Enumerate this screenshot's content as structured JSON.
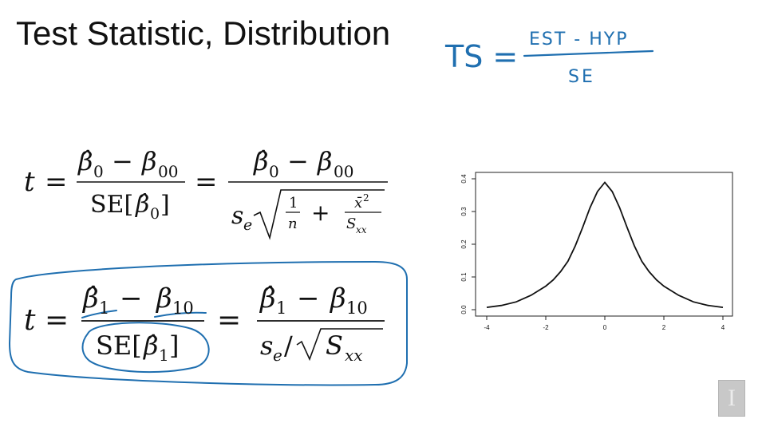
{
  "slide": {
    "title": "Test Statistic, Distribution",
    "handwritten_formula": {
      "lhs": "TS =",
      "numerator": "EST - HYP",
      "denominator": "SE"
    },
    "equation_intercept": {
      "var": "t",
      "eq1": "=",
      "eq2": "=",
      "frac1_num_hat": "β̂",
      "frac1_num_sub": "0",
      "frac1_num_op": "−",
      "frac1_num_beta": "β",
      "frac1_num_beta_sub": "00",
      "frac1_den": "SE[",
      "frac1_den_hat": "β̂",
      "frac1_den_sub": "0",
      "frac1_den_close": "]",
      "frac2_num_hat": "β̂",
      "frac2_num_sub": "0",
      "frac2_num_op": "−",
      "frac2_num_beta": "β",
      "frac2_num_beta_sub": "00",
      "frac2_den_s": "s",
      "frac2_den_s_sub": "e",
      "inner1_num": "1",
      "inner1_den": "n",
      "inner_plus": "+",
      "inner2_num": "x̄",
      "inner2_num_sup": "2",
      "inner2_den": "S",
      "inner2_den_sub": "xx"
    },
    "equation_slope": {
      "var": "t",
      "eq1": "=",
      "eq2": "=",
      "frac1_num_hat": "β̂",
      "frac1_num_sub": "1",
      "frac1_num_op": "−",
      "frac1_num_beta": "β",
      "frac1_num_beta_sub": "10",
      "frac1_den": "SE[",
      "frac1_den_hat": "β̂",
      "frac1_den_sub": "1",
      "frac1_den_close": "]",
      "frac2_num_hat": "β̂",
      "frac2_num_sub": "1",
      "frac2_num_op": "−",
      "frac2_num_beta": "β",
      "frac2_num_beta_sub": "10",
      "frac2_den_s": "s",
      "frac2_den_s_sub": "e",
      "frac2_den_slash": "/",
      "frac2_den_S": "S",
      "frac2_den_S_sub": "xx"
    },
    "colors": {
      "ink": "#1f6fb0",
      "text": "#111111"
    },
    "icons": {
      "logo": "university-logo-icon"
    }
  },
  "chart_data": {
    "type": "line",
    "title": "",
    "xlabel": "",
    "ylabel": "",
    "xlim": [
      -4,
      4
    ],
    "ylim": [
      0,
      0.4
    ],
    "x_ticks": [
      -4,
      -2,
      0,
      2,
      4
    ],
    "y_ticks": [
      0.0,
      0.1,
      0.2,
      0.3,
      0.4
    ],
    "x_tick_labels": [
      "-4",
      "-2",
      "0",
      "2",
      "4"
    ],
    "y_tick_labels": [
      "0.0",
      "0.1",
      "0.2",
      "0.3",
      "0.4"
    ],
    "grid": false,
    "series": [
      {
        "x": [
          -4.0,
          -3.5,
          -3.0,
          -2.5,
          -2.0,
          -1.75,
          -1.5,
          -1.25,
          -1.0,
          -0.75,
          -0.5,
          -0.25,
          0.0,
          0.25,
          0.5,
          0.75,
          1.0,
          1.25,
          1.5,
          1.75,
          2.0,
          2.5,
          3.0,
          3.5,
          4.0
        ],
        "y": [
          0.007,
          0.013,
          0.024,
          0.044,
          0.072,
          0.091,
          0.116,
          0.148,
          0.195,
          0.252,
          0.312,
          0.361,
          0.389,
          0.361,
          0.312,
          0.252,
          0.195,
          0.148,
          0.116,
          0.091,
          0.072,
          0.044,
          0.024,
          0.013,
          0.007
        ]
      }
    ]
  }
}
